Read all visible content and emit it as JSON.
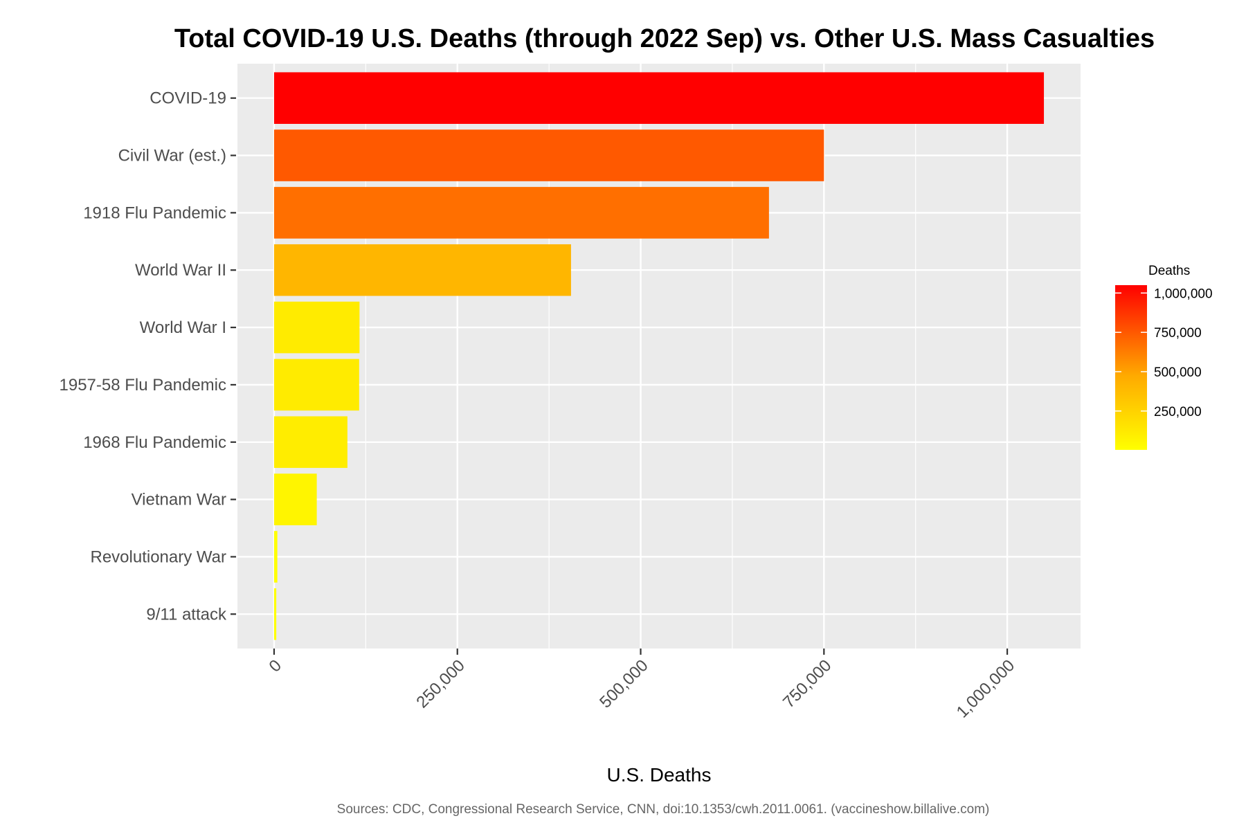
{
  "chart_data": {
    "type": "bar",
    "orientation": "horizontal",
    "title": "Total COVID-19 U.S. Deaths (through 2022 Sep) vs. Other U.S. Mass Casualties",
    "xlabel": "U.S. Deaths",
    "ylabel": "",
    "caption": "Sources: CDC, Congressional Research Service, CNN, doi:10.1353/cwh.2011.0061. (vaccineshow.billalive.com)",
    "categories": [
      "COVID-19",
      "Civil War (est.)",
      "1918 Flu Pandemic",
      "World War II",
      "World War I",
      "1957-58 Flu Pandemic",
      "1968 Flu Pandemic",
      "Vietnam War",
      "Revolutionary War",
      "9/11 attack"
    ],
    "values": [
      1050000,
      750000,
      675000,
      405000,
      116516,
      116000,
      100000,
      58220,
      4435,
      2977
    ],
    "xlim": [
      -50000,
      1100000
    ],
    "xticks": [
      0,
      250000,
      500000,
      750000,
      1000000
    ],
    "xtick_labels": [
      "0",
      "250,000",
      "500,000",
      "750,000",
      "1,000,000"
    ],
    "grid": true,
    "panel_background": "#ebebeb",
    "color_scale": {
      "low_color": "#ffff00",
      "high_color": "#ff0000",
      "mid_color": "#ffaa00",
      "min": 2977,
      "max": 1050000
    },
    "legend": {
      "title": "Deaths",
      "position": "right",
      "ticks": [
        250000,
        500000,
        750000,
        1000000
      ],
      "tick_labels": [
        "250,000",
        "500,000",
        "750,000",
        "1,000,000"
      ]
    }
  }
}
